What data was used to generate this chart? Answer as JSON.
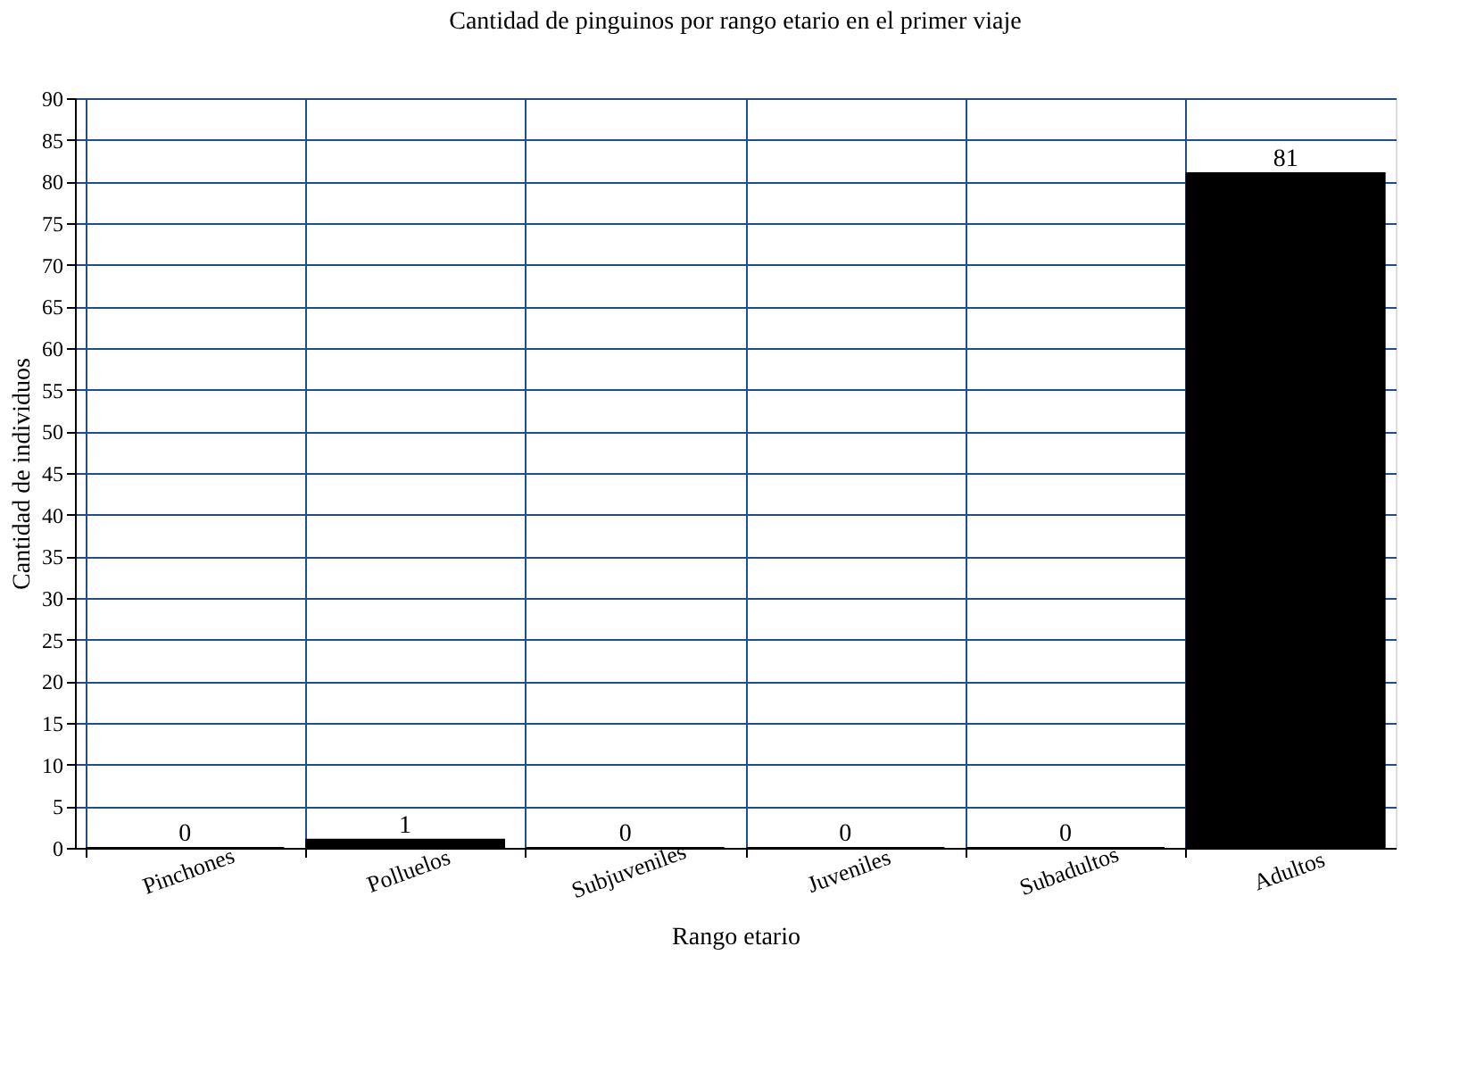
{
  "chart_data": {
    "type": "bar",
    "title": "Cantidad de pinguinos por rango etario en el primer viaje",
    "xlabel": "Rango etario",
    "ylabel": "Cantidad de individuos",
    "categories": [
      "Pinchones",
      "Polluelos",
      "Subjuveniles",
      "Juveniles",
      "Subadultos",
      "Adultos"
    ],
    "values": [
      0,
      1,
      0,
      0,
      0,
      81
    ],
    "color": "#000000",
    "ylim": [
      0,
      90
    ],
    "yticks": [
      0,
      5,
      10,
      15,
      20,
      25,
      30,
      35,
      40,
      45,
      50,
      55,
      60,
      65,
      70,
      75,
      80,
      85,
      90
    ],
    "grid": true,
    "data_labels": true
  }
}
